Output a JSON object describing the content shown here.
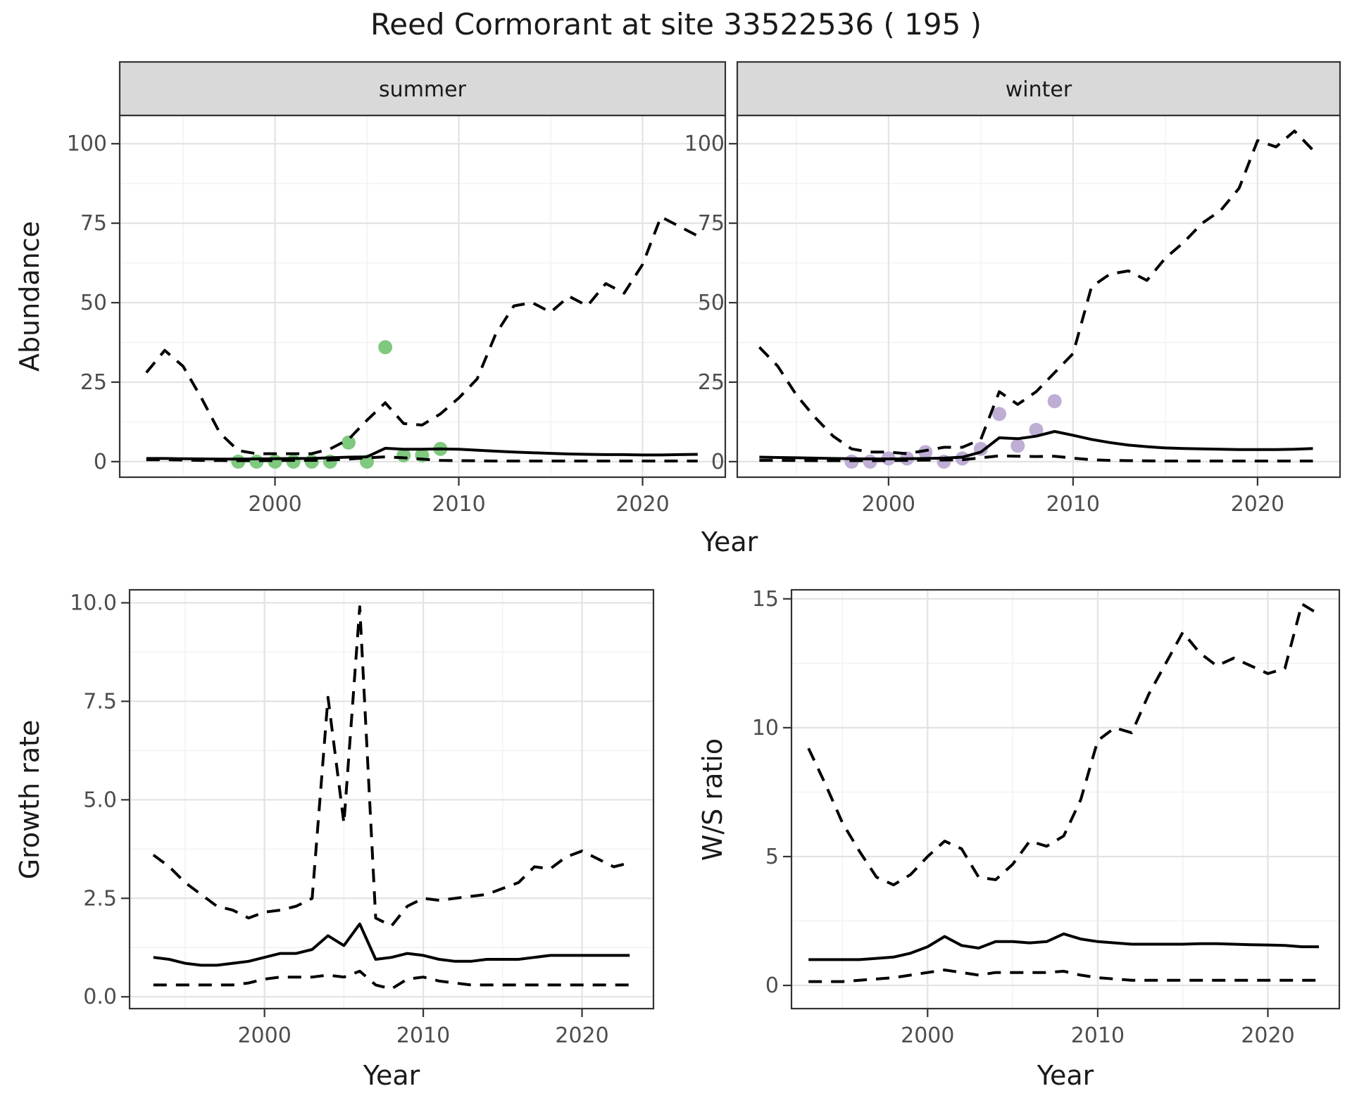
{
  "title": "Reed Cormorant at site 33522536 ( 195 )",
  "axis_titles": {
    "abundance": "Abundance",
    "growth": "Growth rate",
    "ws": "W/S ratio",
    "year_top": "Year",
    "year_growth": "Year",
    "year_ws": "Year"
  },
  "colors": {
    "summer_point": "#7FC97F",
    "winter_point": "#BEAED4",
    "line": "#000000",
    "strip_fill": "#D9D9D9",
    "strip_border": "#333333",
    "panel_border": "#333333",
    "grid_major": "#E3E3E3",
    "grid_minor": "#F1F1F1",
    "tick_label": "#4D4D4D",
    "text": "#1A1A1A",
    "panel_bg": "#FFFFFF"
  },
  "chart_data": [
    {
      "id": "abundance-summer",
      "type": "line",
      "strip_label": "summer",
      "ylabel": "Abundance",
      "xlabel": "Year",
      "xlim": [
        1991.55,
        2024.5
      ],
      "ylim": [
        -4.9,
        108.9
      ],
      "xticks": [
        2000,
        2010,
        2020
      ],
      "xtick_labels": [
        "2000",
        "2010",
        "2020"
      ],
      "x_minor": [
        1995,
        2005,
        2015
      ],
      "yticks": [
        0,
        25,
        50,
        75,
        100
      ],
      "ytick_labels": [
        "0",
        "25",
        "50",
        "75",
        "100"
      ],
      "y_minor": [
        12.5,
        37.5,
        62.5,
        87.5
      ],
      "x": [
        1993,
        1994,
        1995,
        1996,
        1997,
        1998,
        1999,
        2000,
        2001,
        2002,
        2003,
        2004,
        2005,
        2006,
        2007,
        2008,
        2009,
        2010,
        2011,
        2012,
        2013,
        2014,
        2015,
        2016,
        2017,
        2018,
        2019,
        2020,
        2021,
        2022,
        2023
      ],
      "series": [
        {
          "name": "fit",
          "style": "solid",
          "values": [
            1,
            1,
            0.9,
            0.85,
            0.8,
            0.8,
            0.85,
            0.9,
            1,
            1,
            1.2,
            1.4,
            1.5,
            4.2,
            3.9,
            3.9,
            4,
            3.9,
            3.6,
            3.3,
            3,
            2.8,
            2.6,
            2.4,
            2.3,
            2.2,
            2.2,
            2.1,
            2.1,
            2.2,
            2.3
          ]
        },
        {
          "name": "upper_ci",
          "style": "dashed",
          "values": [
            28,
            35,
            30,
            20,
            9,
            3.5,
            2.5,
            2.5,
            2.5,
            2.5,
            4,
            7,
            13,
            18.5,
            12,
            11.5,
            15,
            20,
            26,
            40,
            49,
            50,
            47,
            52,
            49,
            56,
            53,
            62,
            77,
            74,
            71
          ]
        },
        {
          "name": "lower_ci",
          "style": "dashed",
          "values": [
            0.6,
            0.6,
            0.5,
            0.4,
            0.35,
            0.3,
            0.3,
            0.35,
            0.4,
            0.4,
            0.5,
            0.8,
            1.2,
            1.5,
            1.2,
            0.8,
            0.4,
            0.3,
            0.25,
            0.2,
            0.2,
            0.2,
            0.2,
            0.2,
            0.2,
            0.2,
            0.2,
            0.2,
            0.2,
            0.2,
            0.2
          ]
        }
      ],
      "points": {
        "name": "observed-counts",
        "color_key": "summer_point",
        "x": [
          1998,
          1999,
          2000,
          2001,
          2002,
          2003,
          2004,
          2005,
          2006,
          2007,
          2008,
          2009
        ],
        "y": [
          0,
          0,
          0,
          0,
          0,
          0,
          6,
          0,
          36,
          2,
          2,
          4
        ]
      }
    },
    {
      "id": "abundance-winter",
      "type": "line",
      "strip_label": "winter",
      "ylabel": "Abundance",
      "xlabel": "Year",
      "xlim": [
        1991.8,
        2024.47
      ],
      "ylim": [
        -4.9,
        108.9
      ],
      "xticks": [
        2000,
        2010,
        2020
      ],
      "xtick_labels": [
        "2000",
        "2010",
        "2020"
      ],
      "x_minor": [
        1995,
        2005,
        2015
      ],
      "yticks": [
        0,
        25,
        50,
        75,
        100
      ],
      "ytick_labels": [
        "0",
        "25",
        "50",
        "75",
        "100"
      ],
      "y_minor": [
        12.5,
        37.5,
        62.5,
        87.5
      ],
      "x": [
        1993,
        1994,
        1995,
        1996,
        1997,
        1998,
        1999,
        2000,
        2001,
        2002,
        2003,
        2004,
        2005,
        2006,
        2007,
        2008,
        2009,
        2010,
        2011,
        2012,
        2013,
        2014,
        2015,
        2016,
        2017,
        2018,
        2019,
        2020,
        2021,
        2022,
        2023
      ],
      "series": [
        {
          "name": "fit",
          "style": "solid",
          "values": [
            1.4,
            1.3,
            1.2,
            1.1,
            1,
            0.9,
            0.85,
            0.85,
            0.9,
            1,
            1.1,
            1.4,
            3,
            7.5,
            7.2,
            8,
            9.5,
            8.3,
            7,
            6,
            5.2,
            4.7,
            4.3,
            4.1,
            4,
            3.9,
            3.8,
            3.8,
            3.8,
            3.9,
            4.1
          ]
        },
        {
          "name": "upper_ci",
          "style": "dashed",
          "values": [
            36,
            30,
            21,
            14,
            8,
            4,
            3,
            3,
            2.5,
            3.5,
            4.5,
            4.5,
            7,
            22,
            18,
            22,
            28,
            34,
            55,
            59,
            60,
            57,
            64,
            69,
            75,
            79,
            86,
            101,
            99,
            104,
            98
          ]
        },
        {
          "name": "lower_ci",
          "style": "dashed",
          "values": [
            0.4,
            0.4,
            0.35,
            0.3,
            0.3,
            0.3,
            0.3,
            0.35,
            0.4,
            0.45,
            0.5,
            0.6,
            1.2,
            1.8,
            1.7,
            1.6,
            1.7,
            1.1,
            0.6,
            0.4,
            0.3,
            0.25,
            0.2,
            0.2,
            0.2,
            0.2,
            0.2,
            0.2,
            0.2,
            0.2,
            0.2
          ]
        }
      ],
      "points": {
        "name": "observed-counts",
        "color_key": "winter_point",
        "x": [
          1998,
          1999,
          2000,
          2001,
          2002,
          2003,
          2004,
          2005,
          2006,
          2007,
          2008,
          2009
        ],
        "y": [
          0,
          0,
          1,
          1,
          3,
          0,
          1,
          4,
          15,
          5,
          10,
          19
        ]
      }
    },
    {
      "id": "growth-rate",
      "type": "line",
      "strip_label": null,
      "ylabel": "Growth rate",
      "xlabel": "Year",
      "xlim": [
        1991.5,
        2024.5
      ],
      "ylim": [
        -0.3,
        10.33
      ],
      "xticks": [
        2000,
        2010,
        2020
      ],
      "xtick_labels": [
        "2000",
        "2010",
        "2020"
      ],
      "x_minor": [
        1995,
        2005,
        2015
      ],
      "yticks": [
        0,
        2.5,
        5,
        7.5,
        10
      ],
      "ytick_labels": [
        "0.0",
        "2.5",
        "5.0",
        "7.5",
        "10.0"
      ],
      "y_minor": [
        1.25,
        3.75,
        6.25,
        8.75
      ],
      "x": [
        1993,
        1994,
        1995,
        1996,
        1997,
        1998,
        1999,
        2000,
        2001,
        2002,
        2003,
        2004,
        2005,
        2006,
        2007,
        2008,
        2009,
        2010,
        2011,
        2012,
        2013,
        2014,
        2015,
        2016,
        2017,
        2018,
        2019,
        2020,
        2021,
        2022,
        2023
      ],
      "series": [
        {
          "name": "fit",
          "style": "solid",
          "values": [
            1.0,
            0.95,
            0.85,
            0.8,
            0.8,
            0.85,
            0.9,
            1.0,
            1.1,
            1.1,
            1.2,
            1.55,
            1.3,
            1.85,
            0.95,
            1.0,
            1.1,
            1.05,
            0.95,
            0.9,
            0.9,
            0.95,
            0.95,
            0.95,
            1.0,
            1.05,
            1.05,
            1.05,
            1.05,
            1.05,
            1.05
          ]
        },
        {
          "name": "upper_ci",
          "style": "dashed",
          "values": [
            3.6,
            3.3,
            2.9,
            2.6,
            2.3,
            2.2,
            2.0,
            2.15,
            2.2,
            2.3,
            2.5,
            7.6,
            4.4,
            9.9,
            2.0,
            1.8,
            2.3,
            2.5,
            2.45,
            2.5,
            2.55,
            2.6,
            2.75,
            2.9,
            3.3,
            3.25,
            3.55,
            3.7,
            3.5,
            3.3,
            3.4
          ]
        },
        {
          "name": "lower_ci",
          "style": "dashed",
          "values": [
            0.3,
            0.3,
            0.3,
            0.3,
            0.3,
            0.3,
            0.35,
            0.45,
            0.5,
            0.5,
            0.5,
            0.55,
            0.5,
            0.65,
            0.3,
            0.2,
            0.45,
            0.5,
            0.4,
            0.35,
            0.3,
            0.3,
            0.3,
            0.3,
            0.3,
            0.3,
            0.3,
            0.3,
            0.3,
            0.3,
            0.3
          ]
        }
      ],
      "points": null
    },
    {
      "id": "ws-ratio",
      "type": "line",
      "strip_label": null,
      "ylabel": "W/S ratio",
      "xlabel": "Year",
      "xlim": [
        1992.0,
        2024.2
      ],
      "ylim": [
        -0.9,
        15.35
      ],
      "xticks": [
        2000,
        2010,
        2020
      ],
      "xtick_labels": [
        "2000",
        "2010",
        "2020"
      ],
      "x_minor": [
        1995,
        2005,
        2015
      ],
      "yticks": [
        0,
        5,
        10,
        15
      ],
      "ytick_labels": [
        "0",
        "5",
        "10",
        "15"
      ],
      "y_minor": [
        2.5,
        7.5,
        12.5
      ],
      "x": [
        1993,
        1994,
        1995,
        1996,
        1997,
        1998,
        1999,
        2000,
        2001,
        2002,
        2003,
        2004,
        2005,
        2006,
        2007,
        2008,
        2009,
        2010,
        2011,
        2012,
        2013,
        2014,
        2015,
        2016,
        2017,
        2018,
        2019,
        2020,
        2021,
        2022,
        2023
      ],
      "series": [
        {
          "name": "fit",
          "style": "solid",
          "values": [
            1.0,
            1.0,
            1.0,
            1.0,
            1.05,
            1.1,
            1.25,
            1.5,
            1.9,
            1.55,
            1.45,
            1.7,
            1.7,
            1.65,
            1.7,
            2.0,
            1.8,
            1.7,
            1.65,
            1.6,
            1.6,
            1.6,
            1.6,
            1.62,
            1.62,
            1.6,
            1.58,
            1.57,
            1.55,
            1.5,
            1.5
          ]
        },
        {
          "name": "upper_ci",
          "style": "dashed",
          "values": [
            9.2,
            7.8,
            6.3,
            5.2,
            4.2,
            3.9,
            4.3,
            5.0,
            5.6,
            5.3,
            4.2,
            4.1,
            4.7,
            5.6,
            5.4,
            5.8,
            7.2,
            9.5,
            10.0,
            9.8,
            11.3,
            12.5,
            13.7,
            12.9,
            12.4,
            12.7,
            12.4,
            12.1,
            12.3,
            14.8,
            14.4
          ]
        },
        {
          "name": "lower_ci",
          "style": "dashed",
          "values": [
            0.15,
            0.15,
            0.15,
            0.2,
            0.25,
            0.3,
            0.4,
            0.5,
            0.6,
            0.5,
            0.4,
            0.5,
            0.5,
            0.5,
            0.5,
            0.55,
            0.4,
            0.3,
            0.25,
            0.2,
            0.2,
            0.2,
            0.2,
            0.2,
            0.2,
            0.2,
            0.2,
            0.2,
            0.2,
            0.2,
            0.2
          ]
        }
      ],
      "points": null
    }
  ]
}
